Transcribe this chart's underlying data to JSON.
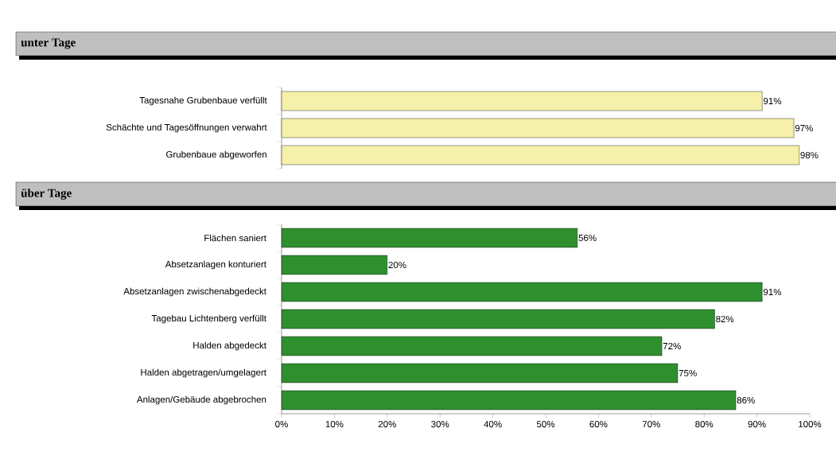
{
  "chart_data": [
    {
      "type": "bar",
      "orientation": "horizontal",
      "title": "unter Tage",
      "categories": [
        "Tagesnahe Grubenbaue verfüllt",
        "Schächte und Tagesöffnungen verwahrt",
        "Grubenbaue abgeworfen"
      ],
      "values": [
        91,
        97,
        98
      ],
      "value_labels": [
        "91%",
        "97%",
        "98%"
      ],
      "color": "#f5f1aa",
      "xlim": [
        0,
        100
      ],
      "tick_labels": "y"
    },
    {
      "type": "bar",
      "orientation": "horizontal",
      "title": "über Tage",
      "categories": [
        "Flächen saniert",
        "Absetzanlagen konturiert",
        "Absetzanlagen zwischenabgedeckt",
        "Tagebau Lichtenberg verfüllt",
        "Halden abgedeckt",
        "Halden abgetragen/umgelagert",
        "Anlagen/Gebäude abgebrochen"
      ],
      "values": [
        56,
        20,
        91,
        82,
        72,
        75,
        86
      ],
      "value_labels": [
        "56%",
        "20%",
        "91%",
        "82%",
        "72%",
        "75%",
        "86%"
      ],
      "color": "#2f8f2f",
      "xlim": [
        0,
        100
      ],
      "xticks": [
        {
          "value": 0,
          "label": "0%"
        },
        {
          "value": 10,
          "label": "10%"
        },
        {
          "value": 20,
          "label": "20%"
        },
        {
          "value": 30,
          "label": "30%"
        },
        {
          "value": 40,
          "label": "40%"
        },
        {
          "value": 50,
          "label": "50%"
        },
        {
          "value": 60,
          "label": "60%"
        },
        {
          "value": 70,
          "label": "70%"
        },
        {
          "value": 80,
          "label": "80%"
        },
        {
          "value": 90,
          "label": "90%"
        },
        {
          "value": 100,
          "label": "100%"
        }
      ]
    }
  ]
}
